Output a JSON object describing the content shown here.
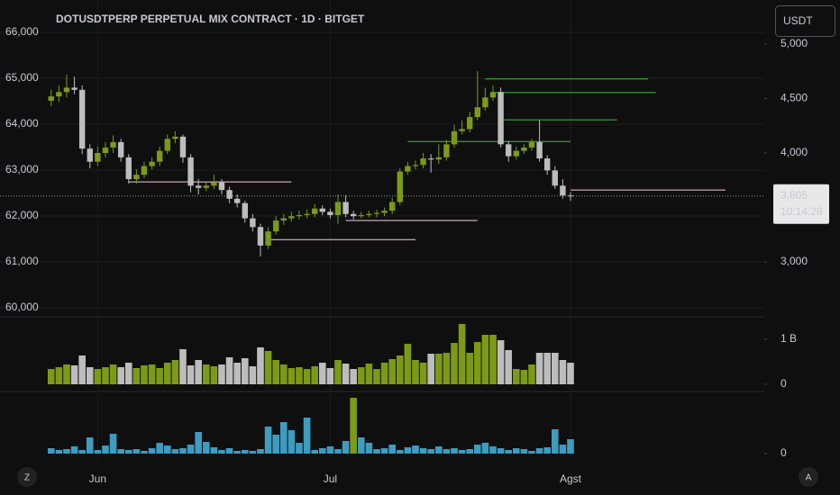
{
  "chart_data": [
    {
      "type": "candlestick",
      "title": "DOTUSDTPERP PERPETUAL MIX CONTRACT · 1D · BITGET",
      "categories": [
        null,
        null,
        null,
        null,
        null,
        null,
        "Jun",
        null,
        null,
        null,
        null,
        null,
        null,
        null,
        null,
        null,
        null,
        null,
        null,
        null,
        null,
        null,
        null,
        null,
        null,
        null,
        null,
        null,
        null,
        null,
        null,
        null,
        null,
        null,
        null,
        null,
        "Jul",
        null,
        null,
        null,
        null,
        null,
        null,
        null,
        null,
        null,
        null,
        null,
        null,
        null,
        null,
        null,
        null,
        null,
        null,
        null,
        null,
        null,
        null,
        null,
        null,
        null,
        null,
        null,
        null,
        null,
        null,
        "Agst"
      ],
      "open": [
        4480,
        4520,
        4560,
        4600,
        4580,
        4040,
        3920,
        4000,
        4050,
        4100,
        3960,
        3760,
        3800,
        3880,
        3920,
        4020,
        4130,
        4150,
        3960,
        3700,
        3680,
        3700,
        3730,
        3660,
        3580,
        3540,
        3400,
        3320,
        3150,
        3280,
        3380,
        3400,
        3420,
        3430,
        3440,
        3490,
        3460,
        3430,
        3550,
        3440,
        3420,
        3430,
        3440,
        3450,
        3470,
        3550,
        3830,
        3880,
        3890,
        3950,
        3940,
        3960,
        4080,
        4200,
        4220,
        4330,
        4420,
        4510,
        4560,
        4080,
        3970,
        4020,
        4050,
        4100,
        3950,
        3840,
        3700,
        3610
      ],
      "high": [
        4580,
        4620,
        4720,
        4700,
        4620,
        4080,
        4060,
        4100,
        4160,
        4130,
        3990,
        3850,
        3920,
        3960,
        4060,
        4170,
        4200,
        4170,
        3990,
        3760,
        3740,
        3800,
        3760,
        3690,
        3620,
        3560,
        3440,
        3350,
        3320,
        3420,
        3440,
        3460,
        3470,
        3480,
        3530,
        3520,
        3490,
        3620,
        3610,
        3470,
        3460,
        3470,
        3480,
        3500,
        3590,
        3860,
        3920,
        3930,
        4000,
        3990,
        4080,
        4120,
        4260,
        4300,
        4380,
        4750,
        4600,
        4620,
        4600,
        4110,
        4060,
        4080,
        4130,
        4300,
        3980,
        3880,
        3760,
        3640
      ],
      "low": [
        4430,
        4470,
        4510,
        4540,
        3990,
        3860,
        3880,
        3960,
        4000,
        3920,
        3720,
        3720,
        3770,
        3850,
        3880,
        3990,
        4090,
        3910,
        3640,
        3620,
        3650,
        3670,
        3620,
        3540,
        3500,
        3360,
        3280,
        3050,
        3120,
        3250,
        3340,
        3370,
        3390,
        3400,
        3410,
        3430,
        3400,
        3350,
        3410,
        3390,
        3400,
        3410,
        3410,
        3420,
        3440,
        3520,
        3800,
        3850,
        3860,
        3820,
        3900,
        3930,
        4050,
        4170,
        4190,
        4300,
        4390,
        4480,
        4050,
        3920,
        3940,
        3990,
        4020,
        3920,
        3800,
        3670,
        3580,
        3560
      ],
      "close": [
        4520,
        4560,
        4600,
        4580,
        4040,
        3920,
        4000,
        4050,
        4100,
        3960,
        3760,
        3800,
        3880,
        3920,
        4020,
        4130,
        4150,
        3960,
        3700,
        3680,
        3700,
        3730,
        3660,
        3580,
        3540,
        3400,
        3320,
        3150,
        3280,
        3380,
        3400,
        3420,
        3430,
        3440,
        3490,
        3460,
        3430,
        3550,
        3440,
        3420,
        3430,
        3440,
        3450,
        3470,
        3550,
        3830,
        3880,
        3890,
        3950,
        3940,
        3960,
        4080,
        4200,
        4220,
        4330,
        4420,
        4510,
        4560,
        4080,
        3970,
        4020,
        4050,
        4100,
        3950,
        3840,
        3700,
        3610,
        3605
      ],
      "up_color": "#7d9a17",
      "down_color": "#bdbdbd",
      "xlim": [
        -6.6,
        92
      ],
      "ylim": [
        2496,
        5405
      ],
      "yticks": [
        {
          "value": 3000,
          "label": "3,000"
        },
        {
          "value": 4000,
          "label": "4,000"
        },
        {
          "value": 4500,
          "label": "4,500"
        },
        {
          "value": 5000,
          "label": "5,000"
        }
      ],
      "y2lim": [
        59804,
        66706
      ],
      "y2ticks": [
        {
          "value": 60000,
          "label": "60,000"
        },
        {
          "value": 61000,
          "label": "61,000"
        },
        {
          "value": 62000,
          "label": "62,000"
        },
        {
          "value": 63000,
          "label": "63,000"
        },
        {
          "value": 64000,
          "label": "64,000"
        },
        {
          "value": 65000,
          "label": "65,000"
        },
        {
          "value": 66000,
          "label": "66,000"
        }
      ],
      "grid": true,
      "last_price": {
        "value": 3605,
        "label": "3,605"
      },
      "countdown": "10:14:28",
      "levels": [
        {
          "value": 4680,
          "start": 56,
          "end": 77,
          "color": "#3fbf3f"
        },
        {
          "value": 4555,
          "start": 57,
          "end": 78,
          "color": "#3fbf3f"
        },
        {
          "value": 4305,
          "start": 58,
          "end": 73,
          "color": "#3fbf3f"
        },
        {
          "value": 4105,
          "start": 46,
          "end": 67,
          "color": "#3fbf3f"
        },
        {
          "value": 3735,
          "start": 10,
          "end": 31,
          "color": "#f2cfe0"
        },
        {
          "value": 3380,
          "start": 38,
          "end": 55,
          "color": "#f2cfe0"
        },
        {
          "value": 3205,
          "start": 28,
          "end": 47,
          "color": "#f2cfe0"
        },
        {
          "value": 3660,
          "start": 67,
          "end": 87,
          "color": "#f2cfe0"
        }
      ]
    },
    {
      "type": "volume",
      "values": [
        0.34,
        0.38,
        0.44,
        0.42,
        0.64,
        0.38,
        0.34,
        0.38,
        0.44,
        0.38,
        0.48,
        0.36,
        0.42,
        0.44,
        0.36,
        0.48,
        0.54,
        0.78,
        0.42,
        0.54,
        0.44,
        0.4,
        0.44,
        0.6,
        0.48,
        0.58,
        0.4,
        0.82,
        0.74,
        0.54,
        0.44,
        0.36,
        0.38,
        0.34,
        0.4,
        0.48,
        0.36,
        0.54,
        0.46,
        0.34,
        0.38,
        0.46,
        0.34,
        0.48,
        0.56,
        0.64,
        0.9,
        0.54,
        0.48,
        0.68,
        0.68,
        0.7,
        0.92,
        1.34,
        0.7,
        0.94,
        1.1,
        1.1,
        0.98,
        0.76,
        0.34,
        0.32,
        0.44,
        0.7,
        0.7,
        0.7,
        0.54,
        0.48
      ],
      "up_color": "#7d9a17",
      "down_color": "#bdbdbd",
      "ylim": [
        -0.16,
        1.5
      ],
      "yticks": [
        0,
        {
          "value": 1,
          "label": "1 B"
        }
      ]
    },
    {
      "type": "bar",
      "values": [
        6,
        4,
        5,
        8,
        4,
        18,
        4,
        9,
        22,
        5,
        4,
        5,
        3,
        6,
        12,
        9,
        5,
        6,
        10,
        24,
        13,
        7,
        4,
        6,
        3,
        4,
        3,
        5,
        30,
        21,
        35,
        26,
        12,
        40,
        4,
        6,
        8,
        5,
        14,
        62,
        18,
        12,
        5,
        6,
        10,
        4,
        7,
        9,
        6,
        5,
        8,
        5,
        6,
        4,
        5,
        10,
        12,
        8,
        6,
        4,
        6,
        5,
        3,
        6,
        7,
        27,
        10,
        16
      ],
      "color": "#3d9cc0",
      "highlight_indices": [
        39
      ],
      "highlight_color": "#7d9a17",
      "ylim": [
        -8,
        69
      ],
      "yticks": [
        0
      ]
    }
  ],
  "currency_button": "USDT",
  "scale_buttons": [
    "Z",
    "A"
  ]
}
